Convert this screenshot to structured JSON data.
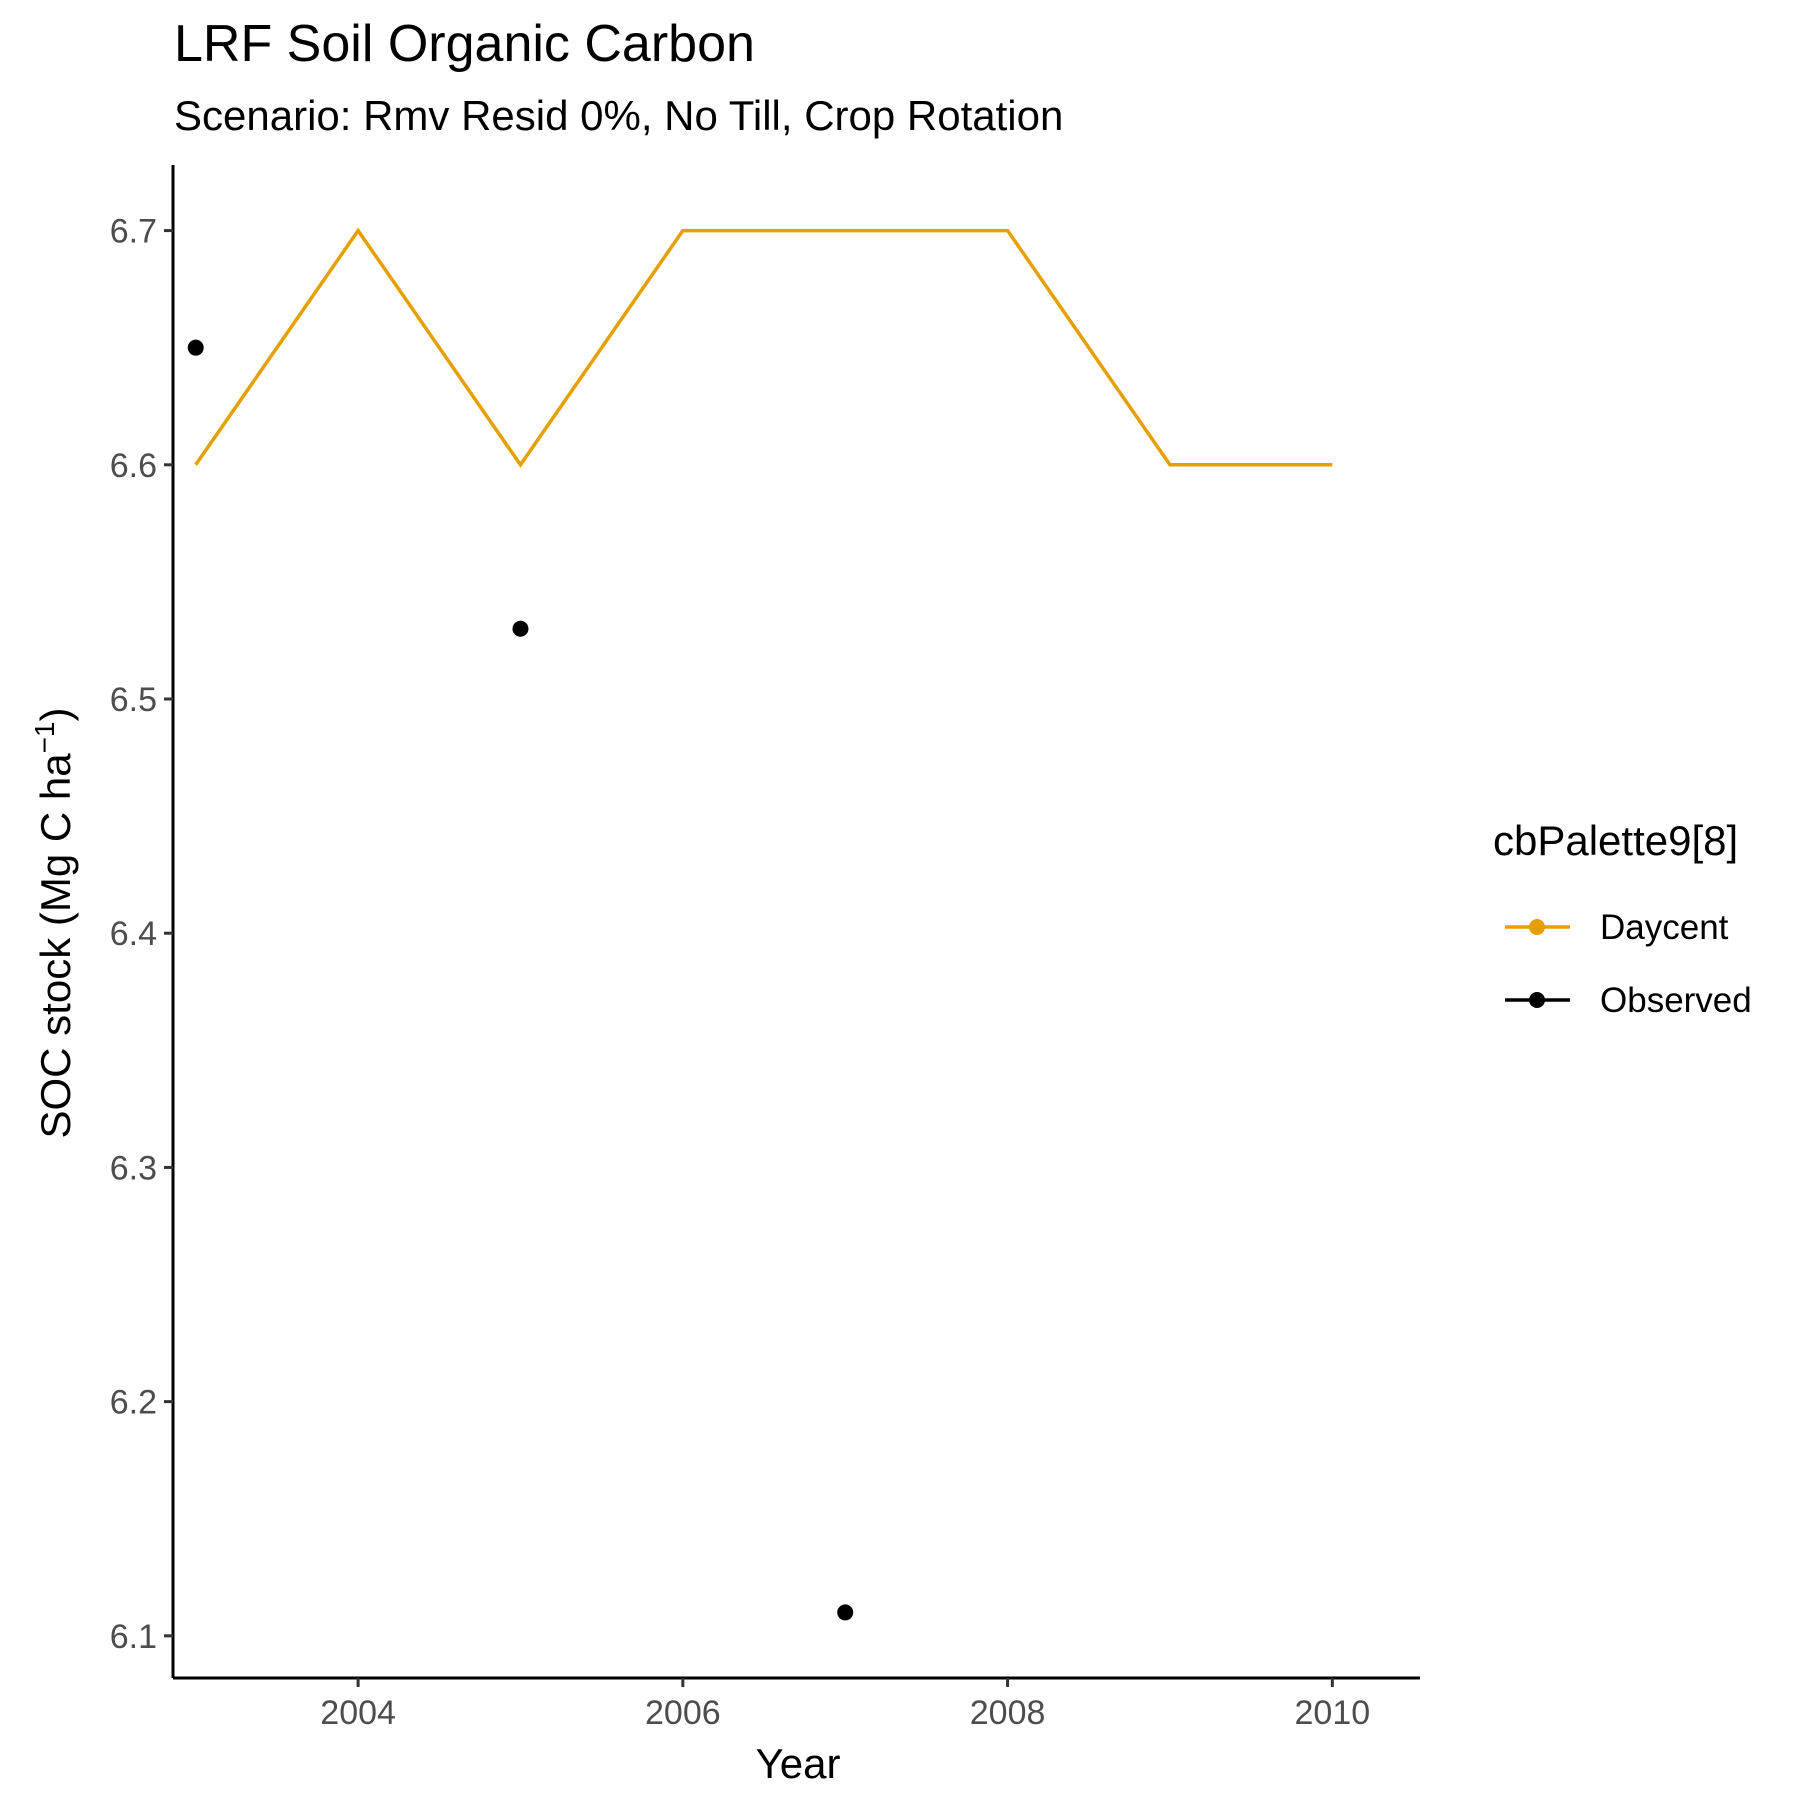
{
  "chart_data": {
    "type": "line",
    "title": "LRF Soil Organic Carbon",
    "subtitle": "Scenario: Rmv Resid 0%, No Till, Crop Rotation",
    "xlabel": "Year",
    "ylabel_main": "SOC stock (Mg C ha",
    "ylabel_sup": "−1",
    "ylabel_close": ")",
    "xlim": [
      2002.86,
      2010.54
    ],
    "ylim": [
      6.082,
      6.728
    ],
    "x_ticks": [
      2004,
      2006,
      2008,
      2010
    ],
    "y_ticks": [
      6.1,
      6.2,
      6.3,
      6.4,
      6.5,
      6.6,
      6.7
    ],
    "grid": false,
    "legend": {
      "title": "cbPalette9[8]",
      "position": "right"
    },
    "series": [
      {
        "name": "Daycent",
        "type": "line",
        "color": "#E69F00",
        "x": [
          2003,
          2004,
          2005,
          2006,
          2007,
          2008,
          2009,
          2010
        ],
        "y": [
          6.6,
          6.7,
          6.6,
          6.7,
          6.7,
          6.7,
          6.6,
          6.6
        ]
      },
      {
        "name": "Observed",
        "type": "scatter",
        "color": "#000000",
        "x": [
          2003,
          2005,
          2007
        ],
        "y": [
          6.65,
          6.53,
          6.11
        ]
      }
    ]
  }
}
